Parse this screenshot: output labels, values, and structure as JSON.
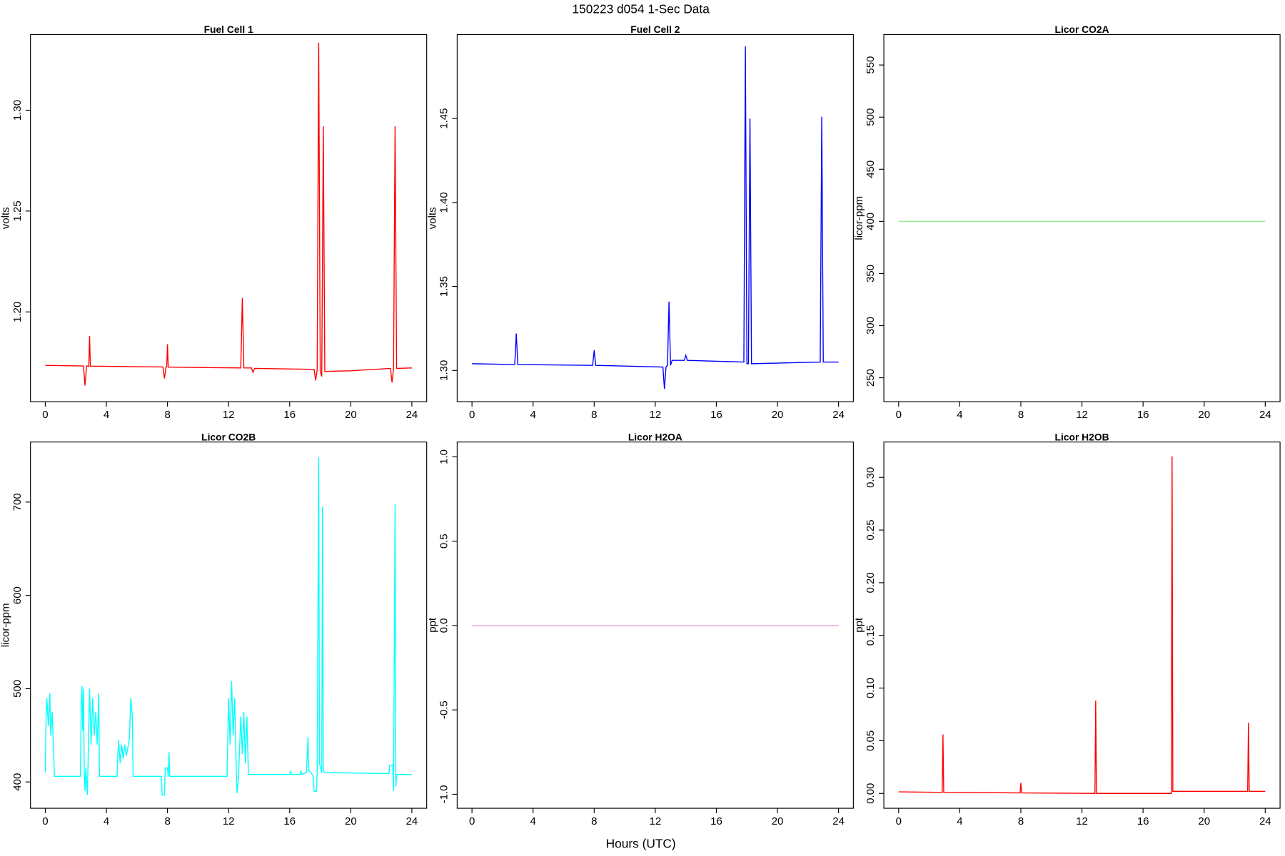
{
  "title": "150223   d054   1-Sec Data",
  "x_label": "Hours (UTC)",
  "chart_data": [
    {
      "type": "line",
      "title": "Fuel Cell 1",
      "y_label": "volts",
      "color": "#ff0000",
      "xlim": [
        -0.97,
        24.97
      ],
      "xticks": [
        0,
        4,
        8,
        12,
        16,
        20,
        24
      ],
      "ylim": [
        1.1555,
        1.3375
      ],
      "yticks": [
        {
          "value": 1.2,
          "label": "1.20"
        },
        {
          "value": 1.25,
          "label": "1.25"
        },
        {
          "value": 1.3,
          "label": "1.30"
        }
      ],
      "x": [
        0,
        2.5,
        2.6,
        2.7,
        2.85,
        2.9,
        2.95,
        7.7,
        7.8,
        7.9,
        7.95,
        8.0,
        8.05,
        12.8,
        12.9,
        13.0,
        13.5,
        13.6,
        13.7,
        17.6,
        17.7,
        17.8,
        17.9,
        18.0,
        18.1,
        18.2,
        18.3,
        20,
        22.6,
        22.7,
        22.8,
        22.9,
        23.0,
        24
      ],
      "values": [
        1.1735,
        1.1732,
        1.1635,
        1.1732,
        1.1731,
        1.188,
        1.1731,
        1.1727,
        1.167,
        1.1727,
        1.1727,
        1.184,
        1.1726,
        1.1722,
        1.207,
        1.1722,
        1.1722,
        1.17,
        1.172,
        1.1715,
        1.166,
        1.1712,
        1.3335,
        1.1705,
        1.168,
        1.292,
        1.1705,
        1.1708,
        1.172,
        1.165,
        1.172,
        1.292,
        1.172,
        1.1722
      ]
    },
    {
      "type": "line",
      "title": "Fuel Cell 2",
      "y_label": "volts",
      "color": "#0000ff",
      "xlim": [
        -0.97,
        24.97
      ],
      "xticks": [
        0,
        4,
        8,
        12,
        16,
        20,
        24
      ],
      "ylim": [
        1.2814,
        1.5
      ],
      "yticks": [
        {
          "value": 1.3,
          "label": "1.30"
        },
        {
          "value": 1.35,
          "label": "1.35"
        },
        {
          "value": 1.4,
          "label": "1.40"
        },
        {
          "value": 1.45,
          "label": "1.45"
        }
      ],
      "x": [
        0,
        2.8,
        2.9,
        3.0,
        7.9,
        8.0,
        8.1,
        12.5,
        12.6,
        12.7,
        12.8,
        12.9,
        13.0,
        13.1,
        13.9,
        14.0,
        14.1,
        17.8,
        17.9,
        18.0,
        18.1,
        18.2,
        18.3,
        22.8,
        22.9,
        23.0,
        24
      ],
      "values": [
        1.304,
        1.3035,
        1.322,
        1.3035,
        1.303,
        1.312,
        1.303,
        1.302,
        1.289,
        1.302,
        1.303,
        1.341,
        1.303,
        1.306,
        1.306,
        1.309,
        1.306,
        1.305,
        1.493,
        1.304,
        1.304,
        1.45,
        1.304,
        1.305,
        1.451,
        1.305,
        1.305
      ]
    },
    {
      "type": "line",
      "title": "Licor CO2A",
      "y_label": "licor-ppm",
      "color": "#90ee90",
      "xlim": [
        -0.97,
        24.97
      ],
      "xticks": [
        0,
        4,
        8,
        12,
        16,
        20,
        24
      ],
      "ylim": [
        227.1,
        579.2
      ],
      "yticks": [
        250,
        300,
        350,
        400,
        450,
        500,
        550
      ],
      "x": [
        0,
        24
      ],
      "values": [
        400,
        400
      ]
    },
    {
      "type": "line",
      "title": "Licor CO2B",
      "y_label": "licor-ppm",
      "color": "#00ffff",
      "xlim": [
        -0.97,
        24.97
      ],
      "xticks": [
        0,
        4,
        8,
        12,
        16,
        20,
        24
      ],
      "ylim": [
        371.8,
        764.4
      ],
      "yticks": [
        400,
        500,
        600,
        700
      ],
      "x": [
        0,
        0.05,
        0.1,
        0.2,
        0.3,
        0.35,
        0.45,
        0.55,
        0.6,
        2.3,
        2.35,
        2.4,
        2.45,
        2.5,
        2.55,
        2.6,
        2.65,
        2.75,
        2.8,
        2.9,
        3.0,
        3.1,
        3.2,
        3.3,
        3.4,
        3.5,
        3.55,
        4.7,
        4.75,
        4.8,
        4.9,
        5.0,
        5.1,
        5.2,
        5.3,
        5.5,
        5.6,
        5.7,
        5.75,
        7.6,
        7.65,
        7.8,
        7.85,
        8.0,
        8.05,
        8.1,
        8.15,
        11.9,
        12.0,
        12.1,
        12.2,
        12.3,
        12.4,
        12.5,
        12.55,
        12.65,
        12.8,
        12.9,
        13.0,
        13.1,
        13.2,
        13.3,
        16.0,
        16.05,
        16.1,
        16.7,
        16.75,
        16.8,
        17.1,
        17.15,
        17.2,
        17.25,
        17.4,
        17.55,
        17.6,
        17.75,
        17.8,
        17.9,
        17.95,
        18.1,
        18.15,
        18.2,
        18.3,
        22.5,
        22.55,
        22.75,
        22.8,
        22.9,
        22.95,
        23.0,
        24
      ],
      "values": [
        410,
        470,
        490,
        460,
        495,
        450,
        475,
        430,
        406,
        406,
        480,
        503,
        455,
        500,
        412,
        390,
        415,
        386,
        420,
        500,
        440,
        490,
        450,
        475,
        440,
        495,
        406,
        406,
        430,
        445,
        420,
        440,
        425,
        440,
        428,
        445,
        490,
        470,
        406,
        406,
        386,
        386,
        415,
        415,
        406,
        432,
        406,
        406,
        490,
        440,
        508,
        450,
        490,
        415,
        388,
        405,
        470,
        430,
        475,
        420,
        470,
        408,
        408,
        412,
        408,
        408,
        412,
        408,
        410,
        430,
        448,
        412,
        410,
        406,
        390,
        390,
        410,
        748,
        420,
        410,
        695,
        412,
        410,
        409,
        418,
        418,
        390,
        698,
        395,
        408,
        408
      ]
    },
    {
      "type": "line",
      "title": "Licor H2OA",
      "y_label": "ppt",
      "color": "#dda0dd",
      "xlim": [
        -0.97,
        24.97
      ],
      "xticks": [
        0,
        4,
        8,
        12,
        16,
        20,
        24
      ],
      "ylim": [
        -1.083,
        1.088
      ],
      "yticks": [
        {
          "value": -1,
          "label": "-1.0"
        },
        {
          "value": -0.5,
          "label": "-0.5"
        },
        {
          "value": 0,
          "label": "0.0"
        },
        {
          "value": 0.5,
          "label": "0.5"
        },
        {
          "value": 1,
          "label": "1.0"
        }
      ],
      "x": [
        0,
        24
      ],
      "values": [
        0,
        0
      ]
    },
    {
      "type": "line",
      "title": "Licor H2OB",
      "y_label": "ppt",
      "color": "#ff0000",
      "xlim": [
        -0.97,
        24.97
      ],
      "xticks": [
        0,
        4,
        8,
        12,
        16,
        20,
        24
      ],
      "ylim": [
        -0.0141,
        0.3336
      ],
      "yticks": [
        {
          "value": 0,
          "label": "0.00"
        },
        {
          "value": 0.05,
          "label": "0.05"
        },
        {
          "value": 0.1,
          "label": "0.10"
        },
        {
          "value": 0.15,
          "label": "0.15"
        },
        {
          "value": 0.2,
          "label": "0.20"
        },
        {
          "value": 0.25,
          "label": "0.25"
        },
        {
          "value": 0.3,
          "label": "0.30"
        }
      ],
      "x": [
        0,
        2.85,
        2.9,
        2.95,
        7.95,
        8.0,
        8.05,
        12.85,
        12.9,
        12.95,
        17.85,
        17.9,
        17.95,
        18.0,
        22.85,
        22.9,
        22.95,
        24
      ],
      "values": [
        0.0015,
        0.001,
        0.056,
        0.001,
        0.0005,
        0.01,
        0.0005,
        0,
        0.088,
        0,
        0,
        0.32,
        0.002,
        0.002,
        0.002,
        0.067,
        0.002,
        0.002
      ]
    }
  ]
}
